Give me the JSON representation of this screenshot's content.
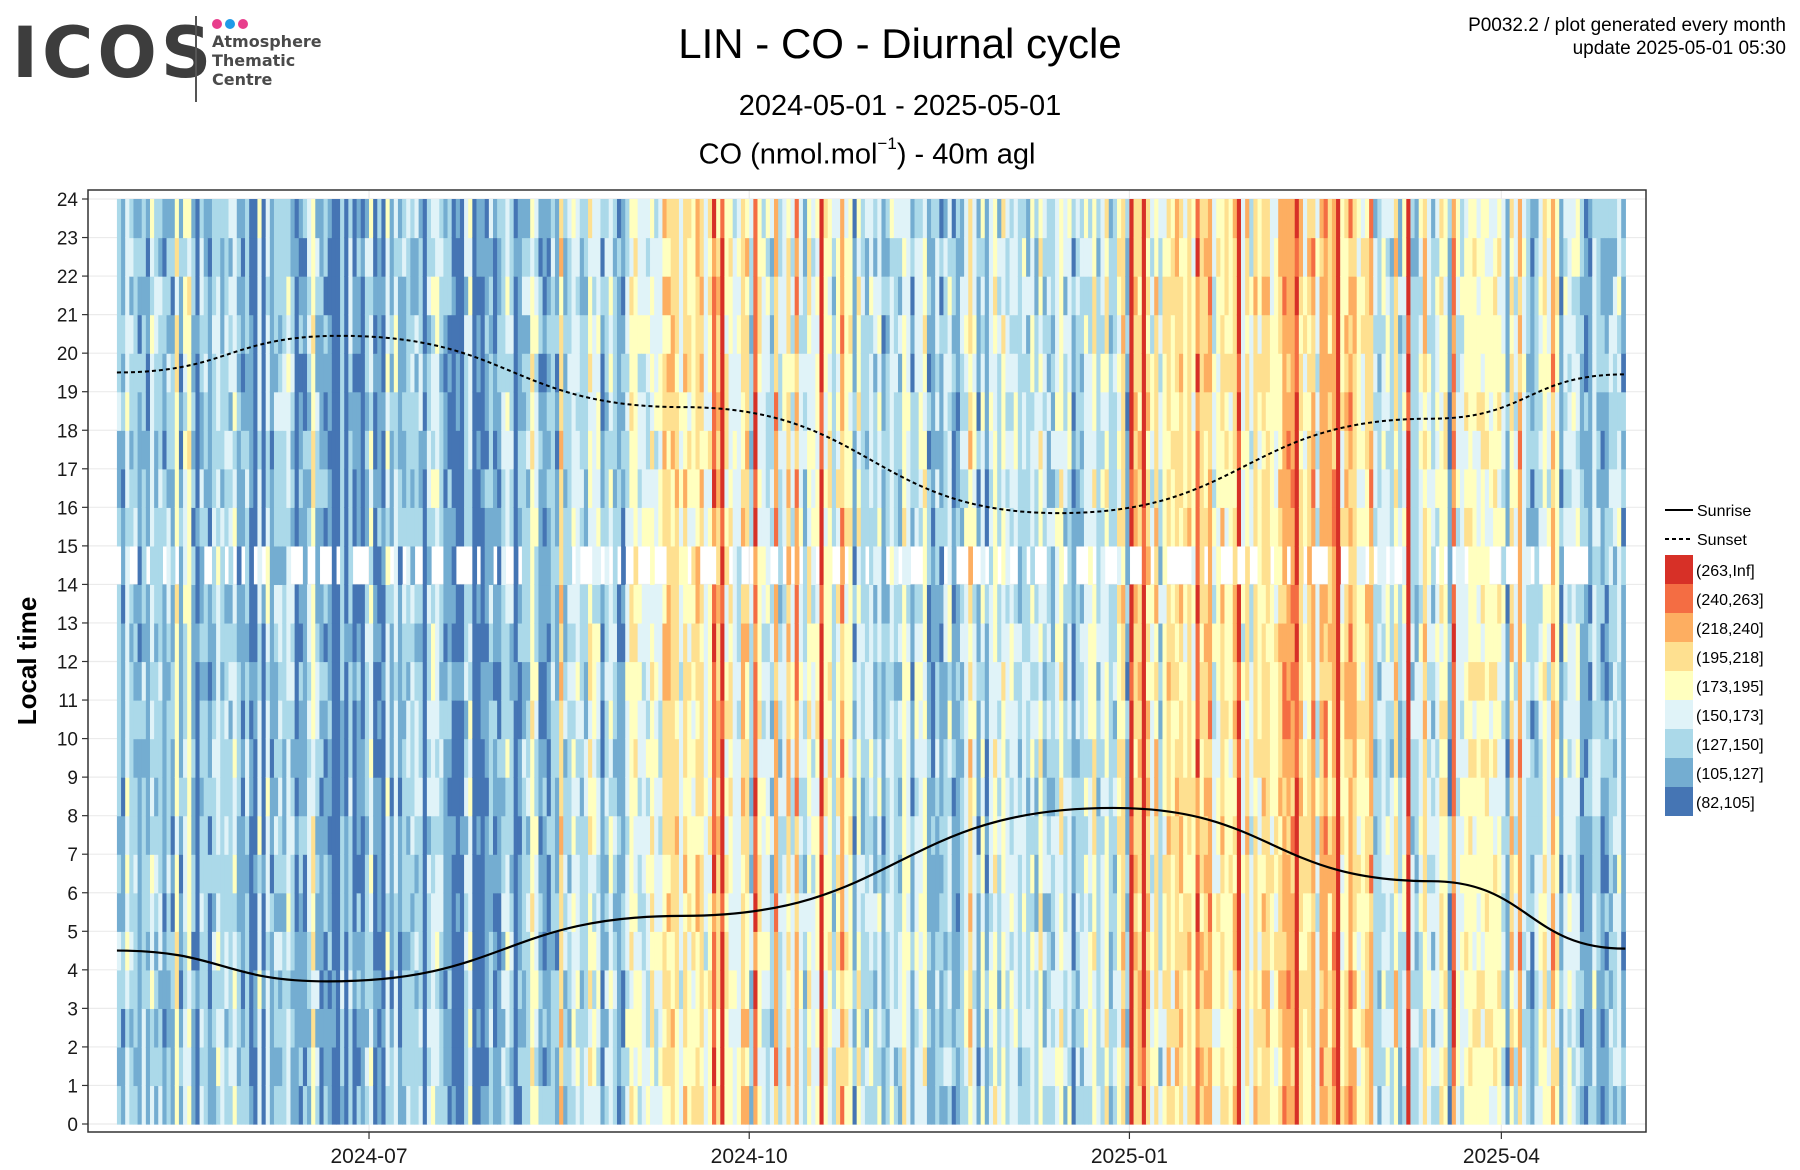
{
  "logo": {
    "wordmark": "ICOS",
    "lines": [
      "Atmosphere",
      "Thematic",
      "Centre"
    ],
    "dot_colors": [
      "#e83e8c",
      "#1e9be8",
      "#e83e8c"
    ]
  },
  "meta": {
    "line1": "P0032.2 / plot generated every month",
    "line2": "update  2025-05-01 05:30"
  },
  "chart_data": {
    "type": "heatmap",
    "title": "LIN - CO - Diurnal cycle",
    "subtitle": "2024-05-01 - 2025-05-01",
    "measure_prefix": "CO (nmol.mol",
    "measure_sup": "−1",
    "measure_suffix": ") - 40m agl",
    "ylabel": "Local time",
    "xlabel": "",
    "x_range": [
      "2024-05-01",
      "2025-05-01"
    ],
    "ylim": [
      0,
      24
    ],
    "yticks": [
      "0",
      "1",
      "2",
      "3",
      "4",
      "5",
      "6",
      "7",
      "8",
      "9",
      "10",
      "11",
      "12",
      "13",
      "14",
      "15",
      "16",
      "17",
      "18",
      "19",
      "20",
      "21",
      "22",
      "23",
      "24"
    ],
    "xticks": [
      {
        "date": "2024-07-01",
        "label": "2024-07"
      },
      {
        "date": "2024-10-01",
        "label": "2024-10"
      },
      {
        "date": "2025-01-01",
        "label": "2025-01"
      },
      {
        "date": "2025-04-01",
        "label": "2025-04"
      }
    ],
    "grid": true,
    "legend_position": "right",
    "legend_lines": [
      {
        "label": "Sunrise",
        "style": "solid"
      },
      {
        "label": "Sunset",
        "style": "dashed"
      }
    ],
    "bins": [
      {
        "label": "(263,Inf]",
        "color": "#d73027"
      },
      {
        "label": "(240,263]",
        "color": "#f46d43"
      },
      {
        "label": "(218,240]",
        "color": "#fdae61"
      },
      {
        "label": "(195,218]",
        "color": "#fee090"
      },
      {
        "label": "(173,195]",
        "color": "#ffffbf"
      },
      {
        "label": "(150,173]",
        "color": "#e0f3f8"
      },
      {
        "label": "(127,150]",
        "color": "#abd9e9"
      },
      {
        "label": "(105,127]",
        "color": "#74add1"
      },
      {
        "label": "(82,105]",
        "color": "#4575b4"
      }
    ],
    "monthly_dominant_bin": [
      {
        "month": "2024-05",
        "bin": "(127,150]"
      },
      {
        "month": "2024-06",
        "bin": "(105,127]"
      },
      {
        "month": "2024-07",
        "bin": "(105,127]"
      },
      {
        "month": "2024-08",
        "bin": "(127,150]"
      },
      {
        "month": "2024-09",
        "bin": "(173,195]"
      },
      {
        "month": "2024-10",
        "bin": "(150,173]"
      },
      {
        "month": "2024-11",
        "bin": "(127,150]"
      },
      {
        "month": "2024-12",
        "bin": "(150,173]"
      },
      {
        "month": "2025-01",
        "bin": "(173,195]"
      },
      {
        "month": "2025-02",
        "bin": "(195,218]"
      },
      {
        "month": "2025-03",
        "bin": "(150,173]"
      },
      {
        "month": "2025-04",
        "bin": "(127,150]"
      }
    ],
    "sunrise": [
      {
        "date": "2024-05-01",
        "hour": 4.5
      },
      {
        "date": "2024-06-21",
        "hour": 3.7
      },
      {
        "date": "2024-09-15",
        "hour": 5.4
      },
      {
        "date": "2024-12-28",
        "hour": 8.2
      },
      {
        "date": "2025-03-15",
        "hour": 6.3
      },
      {
        "date": "2025-05-01",
        "hour": 4.55
      }
    ],
    "sunset": [
      {
        "date": "2024-05-01",
        "hour": 19.5
      },
      {
        "date": "2024-06-24",
        "hour": 20.45
      },
      {
        "date": "2024-09-15",
        "hour": 18.6
      },
      {
        "date": "2024-12-15",
        "hour": 15.85
      },
      {
        "date": "2025-03-15",
        "hour": 18.3
      },
      {
        "date": "2025-05-01",
        "hour": 19.45
      }
    ]
  }
}
